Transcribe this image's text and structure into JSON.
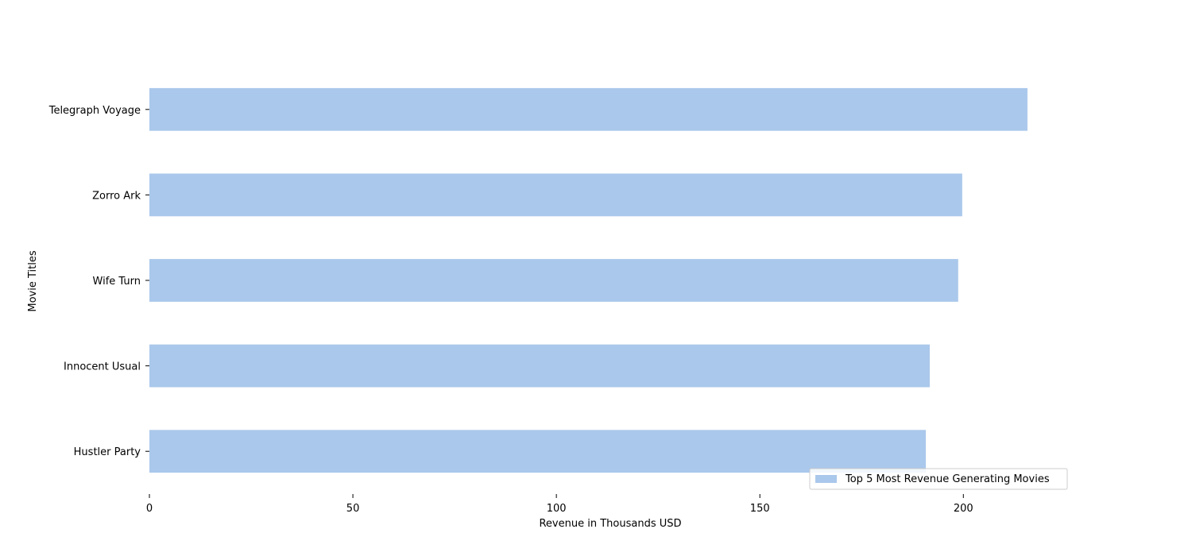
{
  "chart_data": {
    "type": "bar",
    "orientation": "horizontal",
    "categories": [
      "Telegraph Voyage",
      "Zorro Ark",
      "Wife Turn",
      "Innocent Usual",
      "Hustler Party"
    ],
    "series": [
      {
        "name": "Top 5 Most Revenue Generating Movies",
        "values": [
          215.75,
          199.72,
          198.73,
          191.74,
          190.78
        ]
      }
    ],
    "title": "",
    "xlabel": "Revenue in Thousands USD",
    "ylabel": "Movie Titles",
    "xlim": [
      0,
      226.5
    ],
    "xticks": [
      0,
      50,
      100,
      150,
      200
    ],
    "grid": false,
    "legend_position": "lower-right",
    "colors": {
      "bar": "#aac8eb",
      "text": "#000000",
      "legend_border": "#cccccc"
    }
  }
}
